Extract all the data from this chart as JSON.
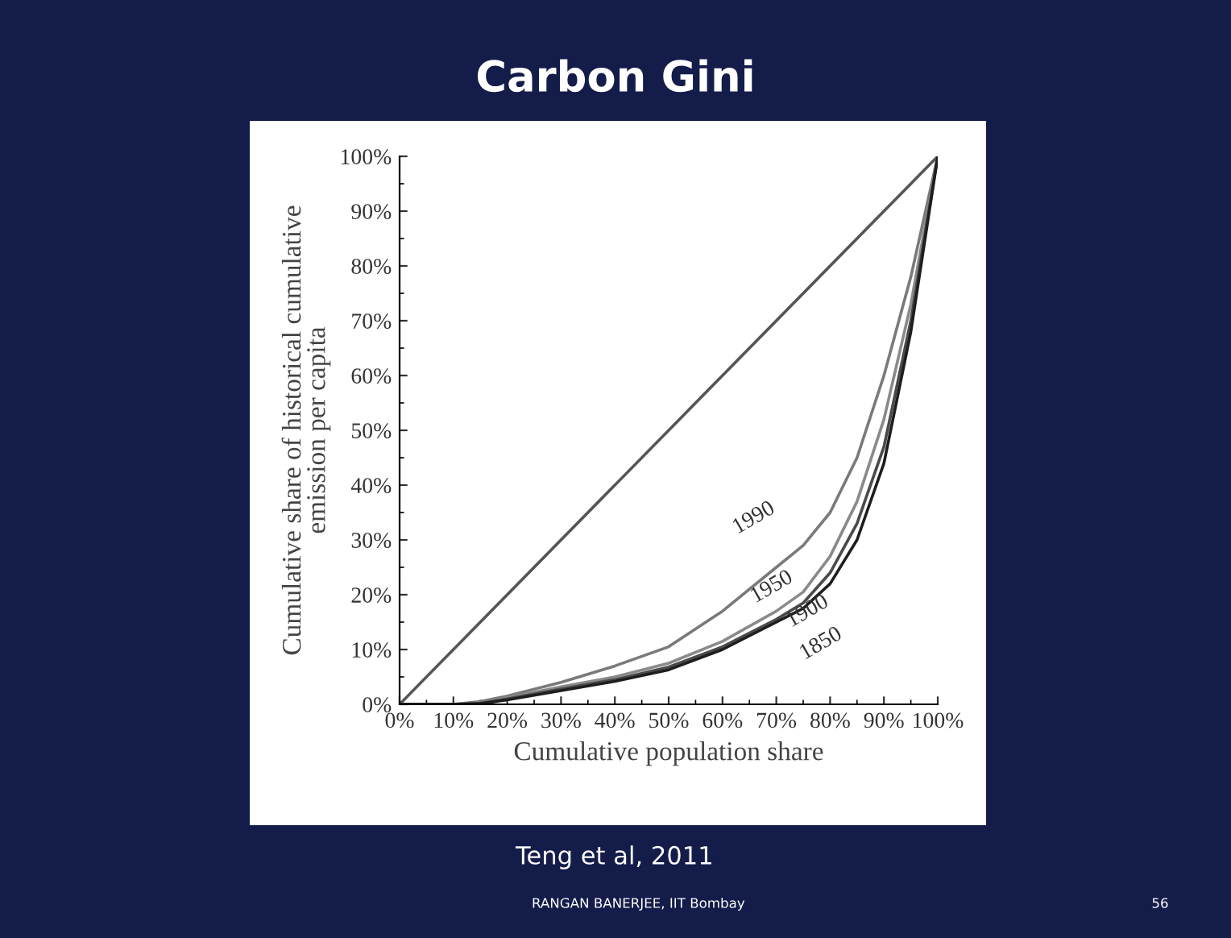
{
  "chart_data": {
    "type": "line",
    "title": "Carbon Gini",
    "xlabel": "Cumulative population share",
    "ylabel": "Cumulative share of historical cumulative\nemission per capita",
    "x": [
      0,
      10,
      15,
      20,
      30,
      40,
      50,
      60,
      70,
      75,
      80,
      85,
      90,
      95,
      100
    ],
    "series": [
      {
        "color": "#555555",
        "x": [
          0,
          100
        ],
        "values": [
          0,
          100
        ]
      },
      {
        "name": "1990",
        "color": "#7a7a7a",
        "values": [
          0,
          0,
          0.5,
          1.5,
          4,
          7,
          10.5,
          17,
          25,
          29,
          35,
          45,
          60,
          78,
          100
        ]
      },
      {
        "name": "1950",
        "color": "#8a8a8a",
        "values": [
          0,
          0,
          0.3,
          1.2,
          3.2,
          5,
          7.5,
          11.5,
          17,
          20.5,
          27,
          37,
          52,
          73,
          100
        ]
      },
      {
        "name": "1900",
        "color": "#4a4a4a",
        "values": [
          0,
          0,
          0.2,
          1,
          2.8,
          4.5,
          6.8,
          10.5,
          15.5,
          18.5,
          24,
          33,
          47,
          70,
          100
        ]
      },
      {
        "name": "1850",
        "color": "#1e1e1e",
        "values": [
          0,
          0,
          0.1,
          0.8,
          2.5,
          4.2,
          6.3,
          10,
          15,
          17.5,
          22,
          30,
          44,
          68,
          100
        ]
      }
    ],
    "xlim": [
      0,
      100
    ],
    "ylim": [
      0,
      100
    ],
    "xticks": [
      {
        "value": 0,
        "label": "0%"
      },
      {
        "value": 10,
        "label": "10%"
      },
      {
        "value": 20,
        "label": "20%"
      },
      {
        "value": 30,
        "label": "30%"
      },
      {
        "value": 40,
        "label": "40%"
      },
      {
        "value": 50,
        "label": "50%"
      },
      {
        "value": 60,
        "label": "60%"
      },
      {
        "value": 70,
        "label": "70%"
      },
      {
        "value": 80,
        "label": "80%"
      },
      {
        "value": 90,
        "label": "90%"
      },
      {
        "value": 100,
        "label": "100%"
      }
    ],
    "yticks": [
      {
        "value": 0,
        "label": "0%"
      },
      {
        "value": 10,
        "label": "10%"
      },
      {
        "value": 20,
        "label": "20%"
      },
      {
        "value": 30,
        "label": "30%"
      },
      {
        "value": 40,
        "label": "40%"
      },
      {
        "value": 50,
        "label": "50%"
      },
      {
        "value": 60,
        "label": "60%"
      },
      {
        "value": 70,
        "label": "70%"
      },
      {
        "value": 80,
        "label": "80%"
      },
      {
        "value": 90,
        "label": "90%"
      },
      {
        "value": 100,
        "label": "100%"
      }
    ],
    "grid": false,
    "legend": false,
    "marker": "none",
    "line_style": "solid",
    "annotations": [
      "Teng et al, 2011",
      "RANGAN BANERJEE, IIT Bombay",
      "56"
    ]
  }
}
